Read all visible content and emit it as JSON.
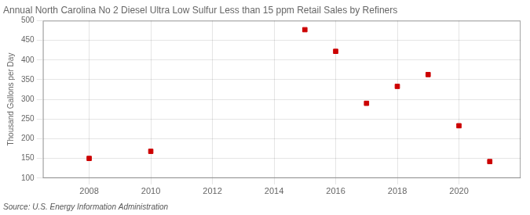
{
  "chart_data": {
    "type": "scatter",
    "title": "Annual North Carolina No 2 Diesel Ultra Low Sulfur Less than 15 ppm Retail Sales by Refiners",
    "y_label": "Thousand Gallons per Day",
    "annotation": "Source: U.S. Energy Information Administration",
    "x": [
      2008,
      2010,
      2015,
      2016,
      2017,
      2018,
      2019,
      2020,
      2021
    ],
    "values": [
      150,
      168,
      477,
      422,
      290,
      333,
      363,
      233,
      142
    ],
    "color": "#cc0000",
    "marker": "square",
    "xlim": [
      2006.5,
      2022.0
    ],
    "ylim": [
      100,
      500
    ],
    "xticks": [
      2008,
      2010,
      2012,
      2014,
      2016,
      2018,
      2020
    ],
    "yticks": [
      100,
      150,
      200,
      250,
      300,
      350,
      400,
      450,
      500
    ],
    "grid": true
  }
}
